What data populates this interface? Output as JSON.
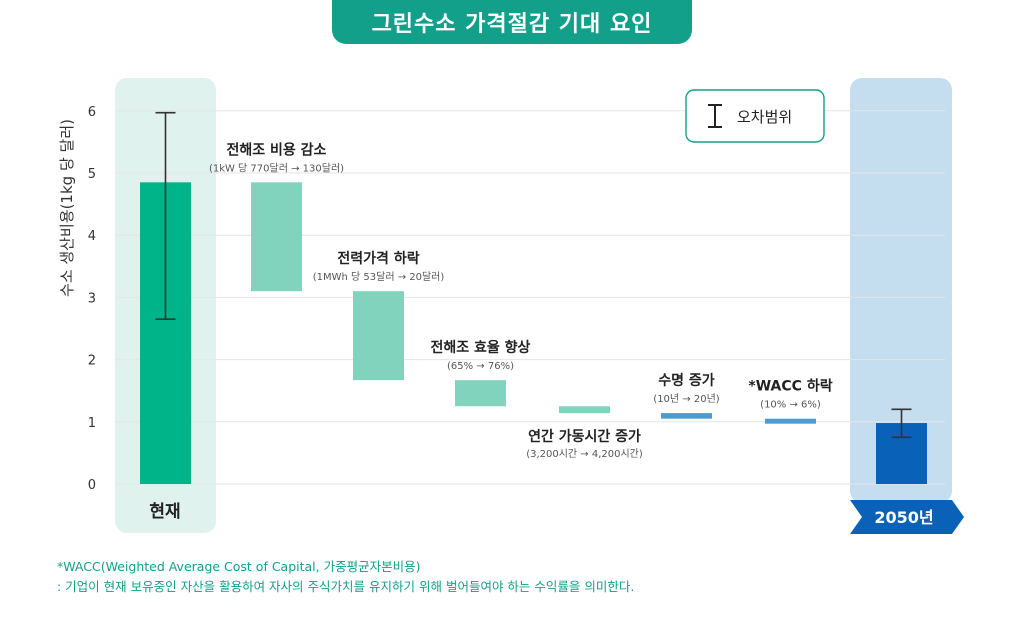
{
  "title": "그린수소 가격절감 기대 요인",
  "chart_data": {
    "type": "waterfall",
    "ylabel": "수소 생산비용(1kg 당 달러)",
    "ylim": [
      0,
      6
    ],
    "yticks": [
      0,
      1,
      2,
      3,
      4,
      5,
      6
    ],
    "grid": true,
    "legend": {
      "label": "오차범위",
      "position": "top-right"
    },
    "start": {
      "label": "현재",
      "value": 4.85,
      "error": [
        2.65,
        5.97
      ],
      "color": "#00b48a"
    },
    "end": {
      "label": "2050년",
      "value": 0.98,
      "error": [
        0.75,
        1.2
      ],
      "color": "#0a62b8"
    },
    "steps": [
      {
        "label": "전해조 비용 감소",
        "sublabel": "(1kW 당 770달러 → 130달러)",
        "from": 4.85,
        "to": 3.1
      },
      {
        "label": "전력가격 하락",
        "sublabel": "(1MWh 당 53달러 → 20달러)",
        "from": 3.1,
        "to": 1.67
      },
      {
        "label": "전해조 효율 향상",
        "sublabel": "(65% →  76%)",
        "from": 1.67,
        "to": 1.25
      },
      {
        "label": "연간 가동시간 증가",
        "sublabel": "(3,200시간 → 4,200시간)",
        "from": 1.25,
        "to": 1.14
      },
      {
        "label": "수명 증가",
        "sublabel": "(10년 → 20년)",
        "from": 1.14,
        "to": 1.05,
        "color": "#4d9bd0"
      },
      {
        "label": "*WACC 하락",
        "sublabel": "(10% →  6%)",
        "from": 1.05,
        "to": 0.99,
        "color": "#4d9bd0"
      }
    ],
    "step_color": "#82d3be"
  },
  "footnote": {
    "line1": "*WACC(Weighted Average Cost of Capital, 가중평균자본비용)",
    "line2": ": 기업이 현재 보유중인 자산을 활용하여 자사의 주식가치를 유지하기 위해 벌어들여야 하는 수익률을 의미한다."
  }
}
